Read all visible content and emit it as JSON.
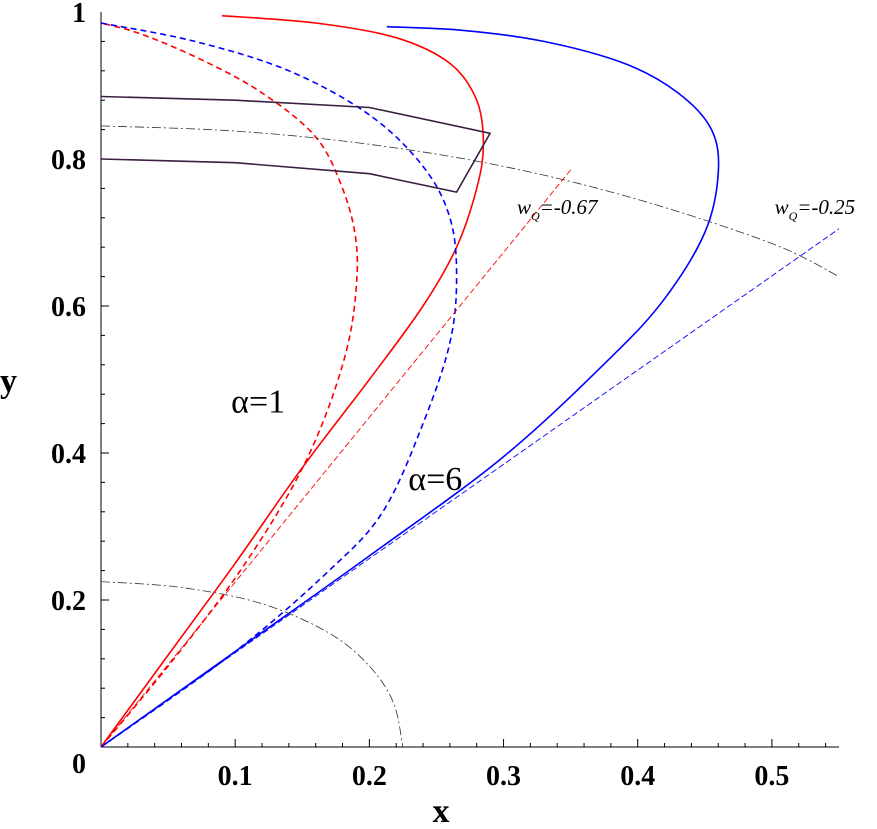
{
  "chart_data": {
    "type": "line",
    "title": "",
    "xlabel": "x",
    "ylabel": "y",
    "xlim": [
      0,
      0.55
    ],
    "ylim": [
      0,
      1
    ],
    "grid": false,
    "x_tick_labels": [
      "0.1",
      "0.2",
      "0.3",
      "0.4",
      "0.5"
    ],
    "x_ticks": [
      0.1,
      0.2,
      0.3,
      0.4,
      0.5
    ],
    "y_tick_labels": [
      "0",
      "0.2",
      "0.4",
      "0.6",
      "0.8",
      "1"
    ],
    "y_ticks": [
      0,
      0.2,
      0.4,
      0.6,
      0.8,
      1
    ],
    "annotations": [
      {
        "id": "alpha1",
        "text": "α=1",
        "x": 0.097,
        "y": 0.455
      },
      {
        "id": "alpha6",
        "text": "α=6",
        "x": 0.229,
        "y": 0.35
      },
      {
        "id": "w067",
        "prefix": "w",
        "sub": "Q",
        "text": "=-0.67",
        "x": 0.31,
        "y": 0.725
      },
      {
        "id": "w025",
        "prefix": "w",
        "sub": "Q",
        "text": "=-0.25",
        "x": 0.502,
        "y": 0.725
      }
    ],
    "series": [
      {
        "id": "red-solid",
        "color": "#ff0000",
        "style": "solid",
        "points": [
          [
            0,
            0
          ],
          [
            0.05,
            0.125
          ],
          [
            0.1,
            0.25
          ],
          [
            0.15,
            0.38
          ],
          [
            0.2,
            0.5
          ],
          [
            0.24,
            0.6
          ],
          [
            0.265,
            0.68
          ],
          [
            0.28,
            0.76
          ],
          [
            0.285,
            0.82
          ],
          [
            0.28,
            0.88
          ],
          [
            0.26,
            0.93
          ],
          [
            0.22,
            0.965
          ],
          [
            0.16,
            0.985
          ],
          [
            0.09,
            0.995
          ]
        ]
      },
      {
        "id": "red-dashed",
        "color": "#ff0000",
        "style": "dashed",
        "points": [
          [
            0,
            0
          ],
          [
            0.05,
            0.11
          ],
          [
            0.1,
            0.23
          ],
          [
            0.14,
            0.345
          ],
          [
            0.165,
            0.44
          ],
          [
            0.183,
            0.54
          ],
          [
            0.19,
            0.62
          ],
          [
            0.19,
            0.69
          ],
          [
            0.18,
            0.76
          ],
          [
            0.16,
            0.83
          ],
          [
            0.12,
            0.89
          ],
          [
            0.075,
            0.935
          ],
          [
            0.03,
            0.97
          ],
          [
            0,
            0.985
          ]
        ]
      },
      {
        "id": "blue-solid",
        "color": "#0000ff",
        "style": "solid",
        "points": [
          [
            0,
            0
          ],
          [
            0.1,
            0.13
          ],
          [
            0.2,
            0.26
          ],
          [
            0.3,
            0.395
          ],
          [
            0.38,
            0.53
          ],
          [
            0.42,
            0.61
          ],
          [
            0.45,
            0.7
          ],
          [
            0.46,
            0.78
          ],
          [
            0.455,
            0.84
          ],
          [
            0.43,
            0.89
          ],
          [
            0.39,
            0.93
          ],
          [
            0.33,
            0.96
          ],
          [
            0.27,
            0.975
          ],
          [
            0.213,
            0.98
          ]
        ]
      },
      {
        "id": "blue-dashed",
        "color": "#0000ff",
        "style": "dashed",
        "points": [
          [
            0,
            0
          ],
          [
            0.1,
            0.13
          ],
          [
            0.17,
            0.24
          ],
          [
            0.21,
            0.32
          ],
          [
            0.24,
            0.44
          ],
          [
            0.26,
            0.55
          ],
          [
            0.265,
            0.64
          ],
          [
            0.26,
            0.72
          ],
          [
            0.24,
            0.79
          ],
          [
            0.2,
            0.86
          ],
          [
            0.14,
            0.92
          ],
          [
            0.07,
            0.96
          ],
          [
            0,
            0.985
          ]
        ]
      },
      {
        "id": "red-thin-dashed-line",
        "color": "#ff0000",
        "style": "dash-thin",
        "points": [
          [
            0,
            0
          ],
          [
            0.35,
            0.785
          ]
        ]
      },
      {
        "id": "blue-thin-dashed-line",
        "color": "#0000ff",
        "style": "dash-thin",
        "points": [
          [
            0,
            0
          ],
          [
            0.55,
            0.705
          ]
        ]
      },
      {
        "id": "gray-arc-outer",
        "color": "#333333",
        "style": "dashdot",
        "points": [
          [
            0,
            0.845
          ],
          [
            0.1,
            0.838
          ],
          [
            0.2,
            0.82
          ],
          [
            0.3,
            0.79
          ],
          [
            0.4,
            0.745
          ],
          [
            0.5,
            0.685
          ],
          [
            0.55,
            0.64
          ]
        ]
      },
      {
        "id": "gray-arc-inner",
        "color": "#333333",
        "style": "dashdot",
        "points": [
          [
            0,
            0.225
          ],
          [
            0.06,
            0.217
          ],
          [
            0.12,
            0.195
          ],
          [
            0.17,
            0.155
          ],
          [
            0.2,
            0.11
          ],
          [
            0.218,
            0.06
          ],
          [
            0.225,
            0
          ]
        ]
      },
      {
        "id": "band-outline",
        "color": "#3a2040",
        "style": "solid",
        "points": [
          [
            0,
            0.885
          ],
          [
            0.1,
            0.88
          ],
          [
            0.2,
            0.87
          ],
          [
            0.29,
            0.835
          ],
          [
            0.265,
            0.755
          ],
          [
            0.2,
            0.78
          ],
          [
            0.1,
            0.795
          ],
          [
            0,
            0.8
          ]
        ]
      }
    ]
  }
}
